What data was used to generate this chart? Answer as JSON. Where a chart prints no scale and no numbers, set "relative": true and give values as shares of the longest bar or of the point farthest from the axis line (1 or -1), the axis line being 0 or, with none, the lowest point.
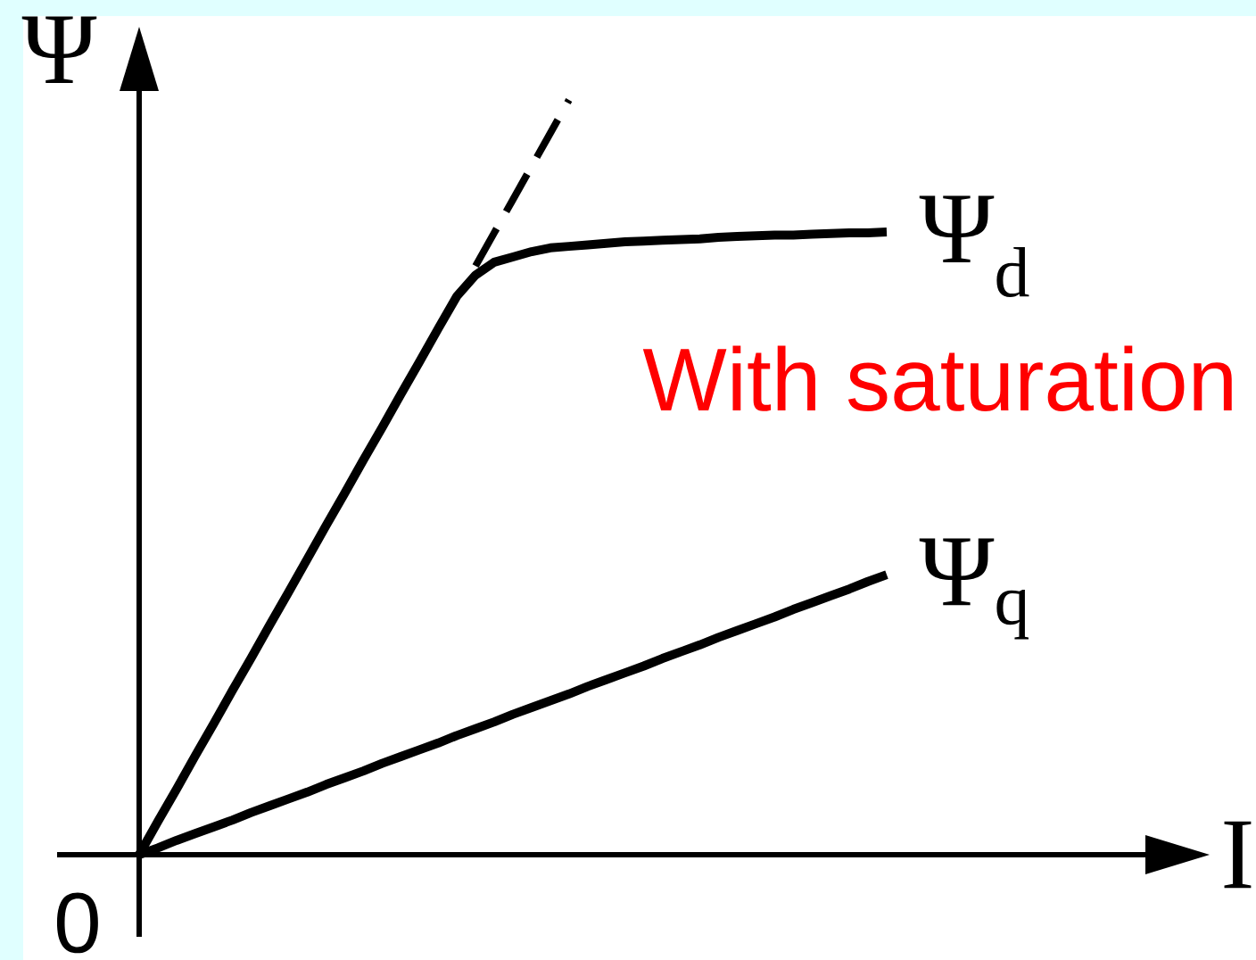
{
  "chart_data": {
    "type": "line",
    "relative": true,
    "xlabel": "I",
    "ylabel": "Ψ",
    "line_style": "solid",
    "marker": "none",
    "categories": [
      null,
      null,
      null,
      null,
      null,
      null,
      null,
      null,
      null,
      null,
      null,
      null,
      null,
      null,
      null,
      null,
      null,
      null,
      null,
      null,
      null,
      null,
      null,
      null,
      null,
      null,
      null,
      null,
      null,
      null,
      null,
      null,
      null,
      null,
      null,
      null,
      null,
      null,
      null,
      null,
      null
    ],
    "series": [
      {
        "name": "Ψ$_{d}$",
        "color": "#000000",
        "values": [
          0,
          0.044,
          0.087,
          0.131,
          0.174,
          0.218,
          0.261,
          0.305,
          0.348,
          0.392,
          0.436,
          0.479,
          0.523,
          0.566,
          0.61,
          0.653,
          0.697,
          0.74,
          0.768,
          0.785,
          0.792,
          0.799,
          0.804,
          0.806,
          0.808,
          0.81,
          0.812,
          0.813,
          0.814,
          0.815,
          0.816,
          0.818,
          0.819,
          0.82,
          0.821,
          0.821,
          0.822,
          0.823,
          0.824,
          0.824,
          0.825
        ]
      },
      {
        "name": "Ψ$_{q}$",
        "color": "#000000",
        "values": [
          0,
          0.009,
          0.019,
          0.028,
          0.037,
          0.046,
          0.056,
          0.065,
          0.074,
          0.083,
          0.093,
          0.102,
          0.111,
          0.121,
          0.13,
          0.139,
          0.148,
          0.158,
          0.167,
          0.176,
          0.186,
          0.195,
          0.204,
          0.213,
          0.223,
          0.232,
          0.241,
          0.25,
          0.26,
          0.269,
          0.278,
          0.288,
          0.297,
          0.306,
          0.315,
          0.325,
          0.334,
          0.343,
          0.352,
          0.362,
          0.371
        ]
      },
      {
        "color": "#000000",
        "line_style": "dashed",
        "values": [
          null,
          null,
          null,
          null,
          null,
          null,
          null,
          null,
          null,
          null,
          null,
          null,
          null,
          null,
          null,
          null,
          null,
          null,
          0.78,
          0.824,
          0.868,
          0.912,
          0.956,
          1.0,
          null,
          null,
          null,
          null,
          null,
          null,
          null,
          null,
          null,
          null,
          null,
          null,
          null,
          null,
          null,
          null,
          null
        ]
      }
    ],
    "annotations": [
      "With saturation",
      "0"
    ]
  }
}
